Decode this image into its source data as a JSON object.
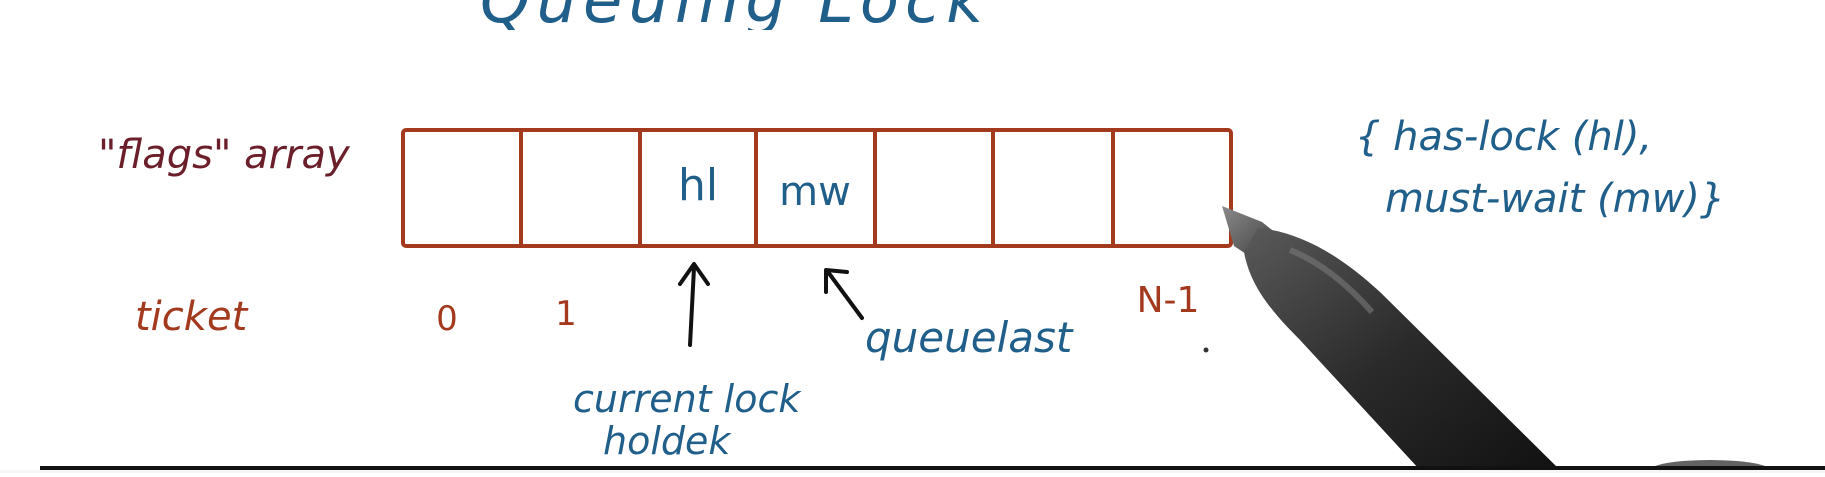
{
  "heading": {
    "partial_text": "Queuing Lock"
  },
  "array": {
    "label": "\"flags\" array",
    "cells": [
      "",
      "",
      "hl",
      "mw",
      "",
      "",
      ""
    ]
  },
  "tickets": {
    "label": "ticket",
    "indices": [
      "0",
      "1",
      "N-1"
    ]
  },
  "legend": {
    "line1": "{ has-lock (hl),",
    "line2": "must-wait (mw)}"
  },
  "annotations": {
    "queuelast": "queuelast",
    "current_lock_holder_line1": "current lock",
    "current_lock_holder_line2": "holdek"
  },
  "colors": {
    "box_stroke": "#a33a1e",
    "blue_ink": "#1f5f8a",
    "red_ink": "#a33a1e",
    "maroon_ink": "#6a1f2a",
    "pen": "#2b2b2b"
  }
}
